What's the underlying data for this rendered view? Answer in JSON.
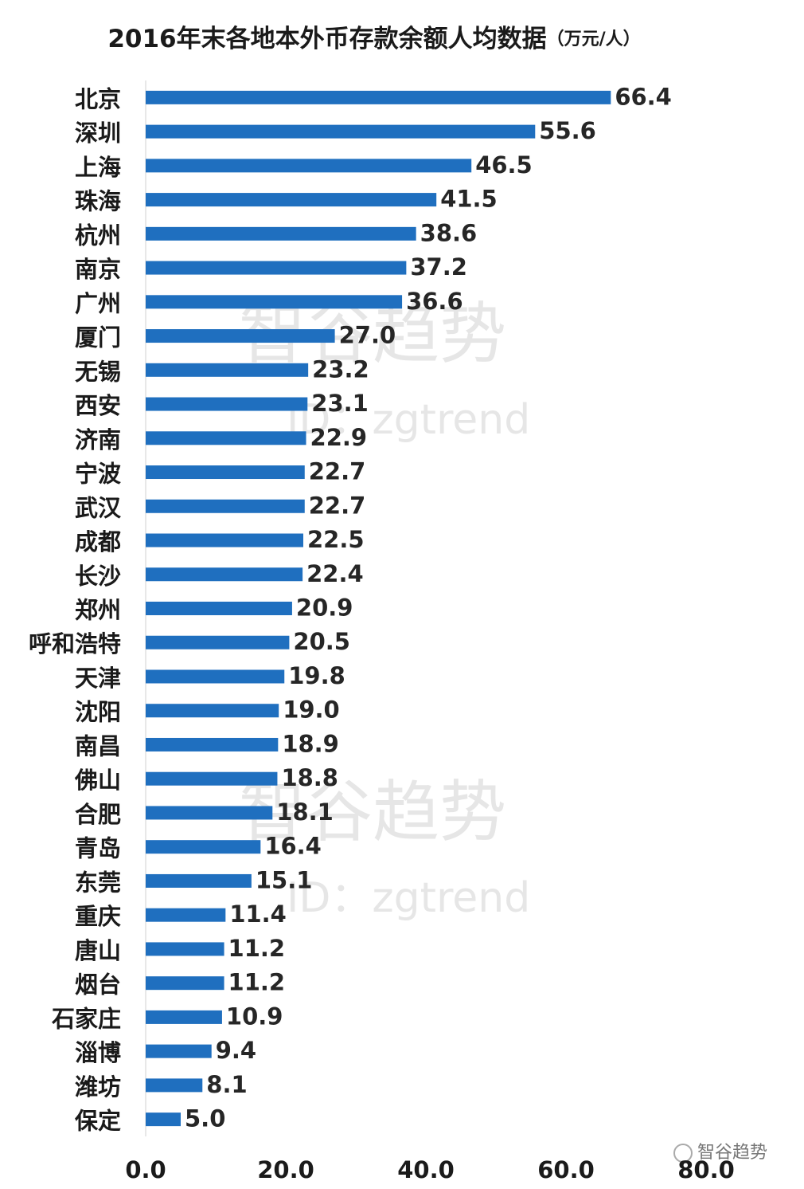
{
  "chart_data": {
    "type": "bar",
    "orientation": "horizontal",
    "title": "2016年末各地本外币存款余额人均数据",
    "unit": "（万元/人）",
    "categories": [
      "北京",
      "深圳",
      "上海",
      "珠海",
      "杭州",
      "南京",
      "广州",
      "厦门",
      "无锡",
      "西安",
      "济南",
      "宁波",
      "武汉",
      "成都",
      "长沙",
      "郑州",
      "呼和浩特",
      "天津",
      "沈阳",
      "南昌",
      "佛山",
      "合肥",
      "青岛",
      "东莞",
      "重庆",
      "唐山",
      "烟台",
      "石家庄",
      "淄博",
      "潍坊",
      "保定"
    ],
    "values": [
      66.4,
      55.6,
      46.5,
      41.5,
      38.6,
      37.2,
      36.6,
      27.0,
      23.2,
      23.1,
      22.9,
      22.7,
      22.7,
      22.5,
      22.4,
      20.9,
      20.5,
      19.8,
      19.0,
      18.9,
      18.8,
      18.1,
      16.4,
      15.1,
      11.4,
      11.2,
      11.2,
      10.9,
      9.4,
      8.1,
      5.0
    ],
    "value_labels": [
      "66.4",
      "55.6",
      "46.5",
      "41.5",
      "38.6",
      "37.2",
      "36.6",
      "27.0",
      "23.2",
      "23.1",
      "22.9",
      "22.7",
      "22.7",
      "22.5",
      "22.4",
      "20.9",
      "20.5",
      "19.8",
      "19.0",
      "18.9",
      "18.8",
      "18.1",
      "16.4",
      "15.1",
      "11.4",
      "11.2",
      "11.2",
      "10.9",
      "9.4",
      "8.1",
      "5.0"
    ],
    "color": "#1f6fbf",
    "xlim": [
      0,
      80
    ],
    "xticks": [
      {
        "value": 0,
        "label": "0.0"
      },
      {
        "value": 20,
        "label": "20.0"
      },
      {
        "value": 40,
        "label": "40.0"
      },
      {
        "value": 60,
        "label": "60.0"
      },
      {
        "value": 80,
        "label": "80.0"
      }
    ],
    "watermark": "智谷趋势",
    "watermark_id": "ID：zgtrend",
    "source": "智谷趋势"
  }
}
